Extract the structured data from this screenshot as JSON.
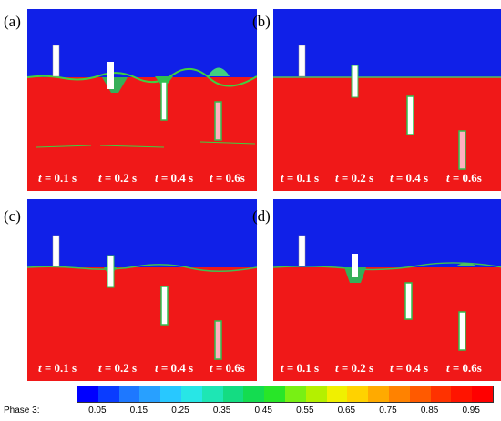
{
  "panels": [
    {
      "id": "a",
      "label": "(a)",
      "times": [
        "0.1 s",
        "0.2 s",
        "0.4 s",
        "0.6s"
      ],
      "time_var": "t"
    },
    {
      "id": "b",
      "label": "(b)",
      "times": [
        "0.1 s",
        "0.2 s",
        "0.4 s",
        "0.6s"
      ],
      "time_var": "t"
    },
    {
      "id": "c",
      "label": "(c)",
      "times": [
        "0.1 s",
        "0.2 s",
        "0.4 s",
        "0.6s"
      ],
      "time_var": "t"
    },
    {
      "id": "d",
      "label": "(d)",
      "times": [
        "0.1 s",
        "0.2 s",
        "0.4 s",
        "0.6s"
      ],
      "time_var": "t"
    }
  ],
  "legend": {
    "title": "Phase 3:",
    "ticks": [
      "0.05",
      "0.15",
      "0.25",
      "0.35",
      "0.45",
      "0.55",
      "0.65",
      "0.75",
      "0.85",
      "0.95"
    ],
    "colors": [
      "#0000ff",
      "#0a3cff",
      "#1e78ff",
      "#28a0ff",
      "#28c8ff",
      "#28e6e6",
      "#1ee6b4",
      "#14dc82",
      "#14dc50",
      "#28e628",
      "#78f014",
      "#b4f000",
      "#f0f000",
      "#ffd200",
      "#ffaa00",
      "#ff8200",
      "#ff5a00",
      "#ff3200",
      "#ff1400",
      "#ff0000"
    ]
  },
  "colors": {
    "air": "#1020e8",
    "water": "#f01818",
    "rod": "#ffffff",
    "interface": "#40d040"
  }
}
